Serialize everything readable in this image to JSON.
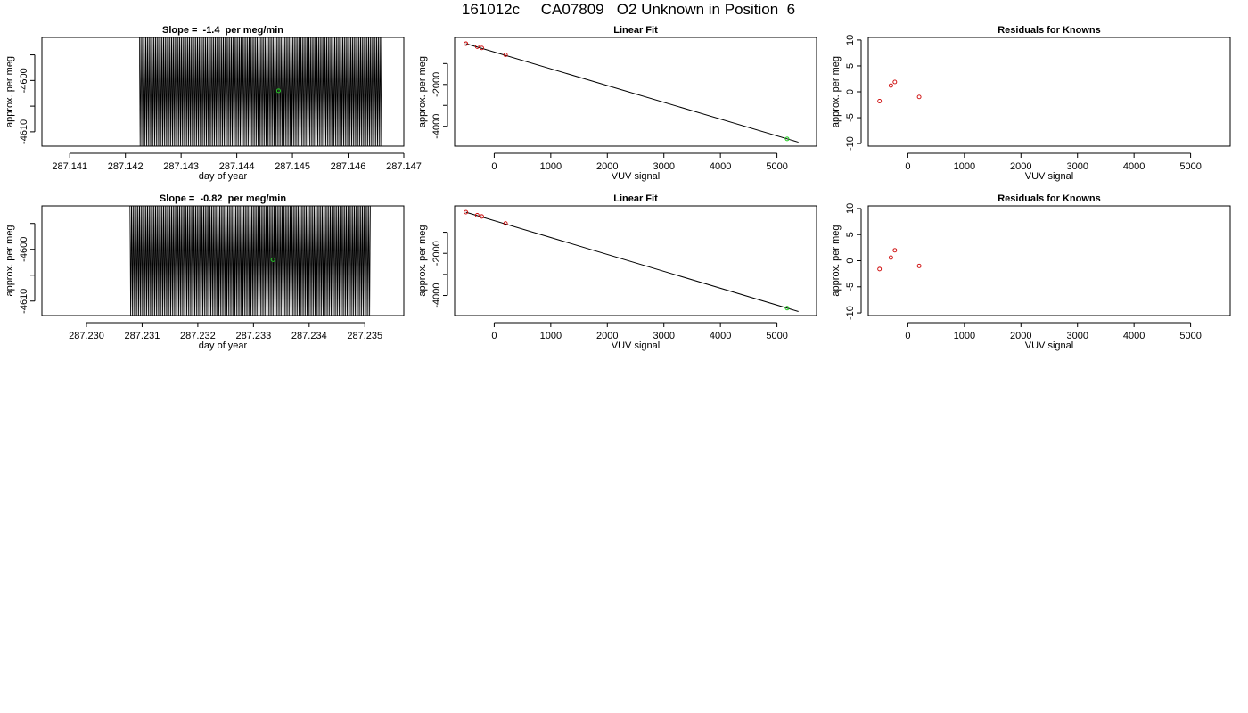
{
  "page_title": "161012c     CA07809   O2 Unknown in Position  6",
  "colors": {
    "axis": "#000000",
    "trace": "#000000",
    "known_point": "#cc0000",
    "unknown_point": "#22cc22"
  },
  "chart_data": [
    {
      "type": "line",
      "title": "Slope =  -1.4  per meg/min",
      "xlabel": "day of year",
      "ylabel": "approx. per meg",
      "xlim": [
        287.1405,
        287.147
      ],
      "ylim": [
        -4612.8,
        -4591.6
      ],
      "xticks": [
        287.141,
        287.142,
        287.143,
        287.144,
        287.145,
        287.146,
        287.147
      ],
      "xtick_labels": [
        "287.141",
        "287.142",
        "287.143",
        "287.144",
        "287.145",
        "287.146",
        "287.147"
      ],
      "yticks": [
        -4610,
        -4605,
        -4600,
        -4595
      ],
      "ytick_labels": [
        "-4610",
        "",
        "-4600",
        ""
      ],
      "trace": {
        "x_start": 287.14225,
        "x_end": 287.1466,
        "cycles": 150,
        "y_center": -4601.5,
        "y_amplitude": 12
      },
      "highlight_point": {
        "x": 287.14475,
        "y": -4602.0
      },
      "grid": false
    },
    {
      "type": "scatter",
      "title": "Linear Fit",
      "xlabel": "VUV signal",
      "ylabel": "approx. per meg",
      "xlim": [
        -700,
        5700
      ],
      "ylim": [
        -4950,
        250
      ],
      "xticks": [
        0,
        1000,
        2000,
        3000,
        4000,
        5000
      ],
      "xtick_labels": [
        "0",
        "1000",
        "2000",
        "3000",
        "4000",
        "5000"
      ],
      "yticks": [
        -4000,
        -3000,
        -2000,
        -1000
      ],
      "ytick_labels": [
        "-4000",
        "",
        "-2000",
        ""
      ],
      "fit_line": {
        "x": [
          -500,
          5380
        ],
        "y": [
          -50,
          -4760
        ]
      },
      "known_points": {
        "x": [
          -500,
          -300,
          -220,
          200
        ],
        "y": [
          -48,
          -194,
          -252,
          -584
        ]
      },
      "unknown_point": {
        "x": 5180,
        "y": -4602
      },
      "grid": false
    },
    {
      "type": "scatter",
      "title": "Residuals for Knowns",
      "xlabel": "VUV signal",
      "ylabel": "approx. per meg",
      "xlim": [
        -700,
        5700
      ],
      "ylim": [
        -10.5,
        10.5
      ],
      "xticks": [
        0,
        1000,
        2000,
        3000,
        4000,
        5000
      ],
      "xtick_labels": [
        "0",
        "1000",
        "2000",
        "3000",
        "4000",
        "5000"
      ],
      "yticks": [
        -10,
        -5,
        0,
        5,
        10
      ],
      "ytick_labels": [
        "-10",
        "-5",
        "0",
        "5",
        "10"
      ],
      "known_points": {
        "x": [
          -500,
          -300,
          -230,
          200
        ],
        "y": [
          -1.8,
          1.2,
          1.9,
          -1.0
        ]
      },
      "grid": false
    },
    {
      "type": "line",
      "title": "Slope =  -0.82  per meg/min",
      "xlabel": "day of year",
      "ylabel": "approx. per meg",
      "xlim": [
        287.2292,
        287.2357
      ],
      "ylim": [
        -4612.8,
        -4591.6
      ],
      "xticks": [
        287.23,
        287.231,
        287.232,
        287.233,
        287.234,
        287.235
      ],
      "xtick_labels": [
        "287.230",
        "287.231",
        "287.232",
        "287.233",
        "287.234",
        "287.235"
      ],
      "yticks": [
        -4610,
        -4605,
        -4600,
        -4595
      ],
      "ytick_labels": [
        "-4610",
        "",
        "-4600",
        ""
      ],
      "trace": {
        "x_start": 287.23078,
        "x_end": 287.2351,
        "cycles": 150,
        "y_center": -4601.5,
        "y_amplitude": 12
      },
      "highlight_point": {
        "x": 287.23335,
        "y": -4602.0
      },
      "grid": false
    },
    {
      "type": "scatter",
      "title": "Linear Fit",
      "xlabel": "VUV signal",
      "ylabel": "approx. per meg",
      "xlim": [
        -700,
        5700
      ],
      "ylim": [
        -4950,
        250
      ],
      "xticks": [
        0,
        1000,
        2000,
        3000,
        4000,
        5000
      ],
      "xtick_labels": [
        "0",
        "1000",
        "2000",
        "3000",
        "4000",
        "5000"
      ],
      "yticks": [
        -4000,
        -3000,
        -2000,
        -1000
      ],
      "ytick_labels": [
        "-4000",
        "",
        "-2000",
        ""
      ],
      "fit_line": {
        "x": [
          -500,
          5380
        ],
        "y": [
          -50,
          -4760
        ]
      },
      "known_points": {
        "x": [
          -500,
          -300,
          -220,
          200
        ],
        "y": [
          -48,
          -194,
          -252,
          -584
        ]
      },
      "unknown_point": {
        "x": 5180,
        "y": -4602
      },
      "grid": false
    },
    {
      "type": "scatter",
      "title": "Residuals for Knowns",
      "xlabel": "VUV signal",
      "ylabel": "approx. per meg",
      "xlim": [
        -700,
        5700
      ],
      "ylim": [
        -10.5,
        10.5
      ],
      "xticks": [
        0,
        1000,
        2000,
        3000,
        4000,
        5000
      ],
      "xtick_labels": [
        "0",
        "1000",
        "2000",
        "3000",
        "4000",
        "5000"
      ],
      "yticks": [
        -10,
        -5,
        0,
        5,
        10
      ],
      "ytick_labels": [
        "-10",
        "-5",
        "0",
        "5",
        "10"
      ],
      "known_points": {
        "x": [
          -500,
          -300,
          -230,
          200
        ],
        "y": [
          -1.6,
          0.6,
          2.0,
          -1.0
        ]
      },
      "grid": false
    }
  ]
}
